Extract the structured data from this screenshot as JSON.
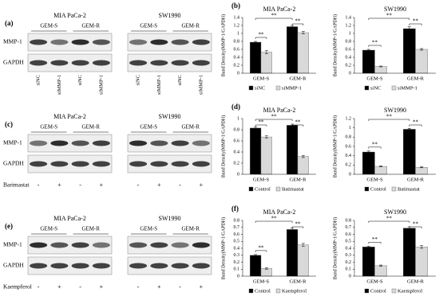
{
  "blots": [
    {
      "label": "(a)",
      "rows": [
        "MMP-1",
        "GAPDH"
      ],
      "groups": [
        {
          "cell_line": "MIA PaCa-2",
          "conditions": [
            "GEM-S",
            "GEM-R"
          ],
          "lanes": [
            "siNC",
            "siMMP-1",
            "siNC",
            "siMMP-1"
          ]
        },
        {
          "cell_line": "SW1990",
          "conditions": [
            "GEM-S",
            "GEM-R"
          ],
          "lanes": [
            "siNC",
            "siMMP-1",
            "siNC",
            "siMMP-1"
          ]
        }
      ]
    },
    {
      "label": "(c)",
      "rows": [
        "MMP-1",
        "GAPDH"
      ],
      "treatment": "Barimastat",
      "groups": [
        {
          "cell_line": "MIA PaCa-2",
          "conditions": [
            "GEM-S",
            "GEM-R"
          ],
          "lanes": [
            "-",
            "+",
            "-",
            "+"
          ]
        },
        {
          "cell_line": "SW1990",
          "conditions": [
            "GEM-S",
            "GEM-R"
          ],
          "lanes": [
            "-",
            "+",
            "-",
            "+"
          ]
        }
      ]
    },
    {
      "label": "(e)",
      "rows": [
        "MMP-1",
        "GAPDH"
      ],
      "treatment": "Kaempferol",
      "groups": [
        {
          "cell_line": "MIA PaCa-2",
          "conditions": [
            "GEM-S",
            "GEM-R"
          ],
          "lanes": [
            "-",
            "+",
            "-",
            "+"
          ]
        },
        {
          "cell_line": "SW1990",
          "conditions": [
            "GEM-S",
            "GEM-R"
          ],
          "lanes": [
            "-",
            "+",
            "-",
            "+"
          ]
        }
      ]
    }
  ],
  "chart_data": [
    {
      "type": "bar",
      "panel_label": "(b)",
      "title": "MIA PaCa-2",
      "ylabel": "Band Density(MMP-1/GAPDH)",
      "categories": [
        "GEM-S",
        "GEM-R"
      ],
      "series": [
        {
          "name": "siNC",
          "color": "#000000",
          "values": [
            0.78,
            1.17
          ],
          "errors": [
            0.02,
            0.03
          ]
        },
        {
          "name": "siMMP-1",
          "color": "#d9d9d9",
          "values": [
            0.53,
            1.02
          ],
          "errors": [
            0.04,
            0.03
          ]
        }
      ],
      "ylim": [
        0,
        1.4
      ],
      "yticks": [
        0,
        0.2,
        0.4,
        0.6,
        0.8,
        1,
        1.2,
        1.4
      ],
      "annotations": [
        "**",
        "**",
        "**"
      ]
    },
    {
      "type": "bar",
      "title": "SW1990",
      "ylabel": "Band Density(MMP-1/GAPDH)",
      "categories": [
        "GEM-S",
        "GEM-R"
      ],
      "series": [
        {
          "name": "siNC",
          "color": "#000000",
          "values": [
            0.58,
            1.12
          ],
          "errors": [
            0.02,
            0.05
          ]
        },
        {
          "name": "siMMP-1",
          "color": "#d9d9d9",
          "values": [
            0.17,
            0.6
          ],
          "errors": [
            0.01,
            0.02
          ]
        }
      ],
      "ylim": [
        0,
        1.4
      ],
      "yticks": [
        0,
        0.2,
        0.4,
        0.6,
        0.8,
        1,
        1.2,
        1.4
      ],
      "annotations": [
        "**",
        "**",
        "**"
      ]
    },
    {
      "type": "bar",
      "panel_label": "(d)",
      "title": "MIA PaCa-2",
      "ylabel": "Band Density(MMP-1/GAPDH)",
      "categories": [
        "GEM-S",
        "GEM-R"
      ],
      "series": [
        {
          "name": "Control",
          "color": "#000000",
          "values": [
            0.83,
            0.88
          ],
          "errors": [
            0.02,
            0.02
          ]
        },
        {
          "name": "Batimastat",
          "color": "#d9d9d9",
          "values": [
            0.67,
            0.32
          ],
          "errors": [
            0.02,
            0.02
          ]
        }
      ],
      "ylim": [
        0,
        1
      ],
      "yticks": [
        0,
        0.2,
        0.4,
        0.6,
        0.8,
        1
      ],
      "annotations": [
        "**",
        "**",
        "**"
      ]
    },
    {
      "type": "bar",
      "title": "SW1990",
      "ylabel": "Band Density(MMP-1/GAPDH)",
      "categories": [
        "GEM-S",
        "GEM-R"
      ],
      "series": [
        {
          "name": "Control",
          "color": "#000000",
          "values": [
            0.48,
            0.97
          ],
          "errors": [
            0.02,
            0.02
          ]
        },
        {
          "name": "Batimastat",
          "color": "#d9d9d9",
          "values": [
            0.17,
            0.15
          ],
          "errors": [
            0.01,
            0.01
          ]
        }
      ],
      "ylim": [
        0,
        1.2
      ],
      "yticks": [
        0,
        0.2,
        0.4,
        0.6,
        0.8,
        1,
        1.2
      ],
      "annotations": [
        "**",
        "**",
        "**"
      ]
    },
    {
      "type": "bar",
      "panel_label": "(f)",
      "title": "MIA PaCa-2",
      "ylabel": "Band Density(MMP-1/GAPDH)",
      "categories": [
        "GEM-S",
        "GEM-R"
      ],
      "series": [
        {
          "name": "Control",
          "color": "#000000",
          "values": [
            0.3,
            0.67
          ],
          "errors": [
            0.01,
            0.02
          ]
        },
        {
          "name": "Kaempferol",
          "color": "#d9d9d9",
          "values": [
            0.11,
            0.45
          ],
          "errors": [
            0.01,
            0.02
          ]
        }
      ],
      "ylim": [
        0,
        0.8
      ],
      "yticks": [
        0,
        0.1,
        0.2,
        0.3,
        0.4,
        0.5,
        0.6,
        0.7,
        0.8
      ],
      "annotations": [
        "**",
        "**",
        "**"
      ]
    },
    {
      "type": "bar",
      "title": "SW1990",
      "ylabel": "Band Density(MMP-1/GAPDH)",
      "categories": [
        "GEM-S",
        "GEM-R"
      ],
      "series": [
        {
          "name": "Control",
          "color": "#000000",
          "values": [
            0.42,
            0.69
          ],
          "errors": [
            0.01,
            0.02
          ]
        },
        {
          "name": "Kaempferol",
          "color": "#d9d9d9",
          "values": [
            0.15,
            0.42
          ],
          "errors": [
            0.01,
            0.02
          ]
        }
      ],
      "ylim": [
        0,
        0.8
      ],
      "yticks": [
        0,
        0.1,
        0.2,
        0.3,
        0.4,
        0.5,
        0.6,
        0.7,
        0.8
      ],
      "annotations": [
        "**",
        "**",
        "**"
      ]
    }
  ]
}
